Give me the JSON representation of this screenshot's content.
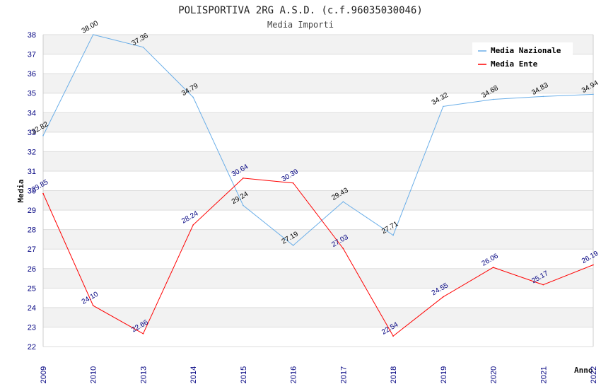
{
  "chart_data": {
    "type": "line",
    "title": "POLISPORTIVA 2RG A.S.D. (c.f.96035030046)",
    "subtitle": "Media Importi",
    "xlabel": "Anno",
    "ylabel": "Media",
    "categories": [
      "2009",
      "2010",
      "2013",
      "2014",
      "2015",
      "2016",
      "2017",
      "2018",
      "2019",
      "2020",
      "2021",
      "2022"
    ],
    "ylim": [
      22,
      38
    ],
    "yticks": [
      "22",
      "23",
      "24",
      "25",
      "26",
      "27",
      "28",
      "29",
      "30",
      "31",
      "32",
      "33",
      "34",
      "35",
      "36",
      "37",
      "38"
    ],
    "series": [
      {
        "name": "Media Nazionale",
        "color": "#6aaee8",
        "values": [
          32.82,
          38.0,
          37.36,
          34.79,
          29.24,
          27.19,
          29.43,
          27.71,
          34.32,
          34.68,
          34.83,
          34.94
        ],
        "labels": [
          "32.82",
          "38.00",
          "37.36",
          "34.79",
          "29.24",
          "27.19",
          "29.43",
          "27.71",
          "34.32",
          "34.68",
          "34.83",
          "34.94"
        ]
      },
      {
        "name": "Media Ente",
        "color": "#ff0000",
        "values": [
          29.85,
          24.1,
          22.66,
          28.24,
          30.64,
          30.39,
          27.03,
          22.54,
          24.55,
          26.06,
          25.17,
          26.19
        ],
        "labels": [
          "29.85",
          "24.10",
          "22.66",
          "28.24",
          "30.64",
          "30.39",
          "27.03",
          "22.54",
          "24.55",
          "26.06",
          "25.17",
          "26.19"
        ]
      }
    ],
    "legend": "top-right",
    "grid": true,
    "colors": {
      "band": "#f2f2f2",
      "grid": "#dddddd",
      "tick_text": "#000080"
    }
  }
}
